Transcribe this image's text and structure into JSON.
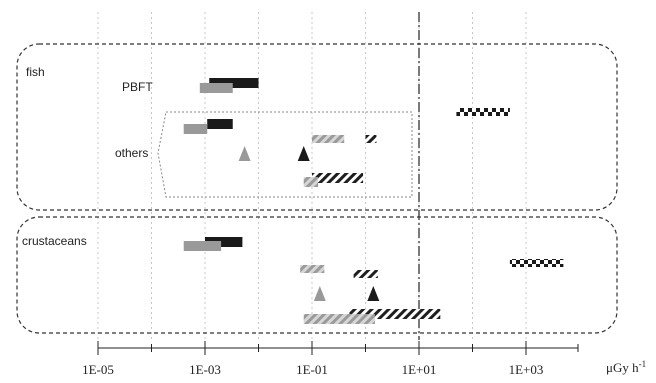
{
  "chart_data": {
    "type": "bar",
    "x_scale": "log10",
    "xlim": [
      1e-06,
      10000
    ],
    "x_ticks": [
      "1E-05",
      "1E-03",
      "1E-01",
      "1E+01",
      "1E+03"
    ],
    "x_tick_values": [
      1e-05,
      0.001,
      0.1,
      10,
      1000
    ],
    "x_minor_ticks": [
      0.0001,
      0.01,
      1,
      100
    ],
    "xlabel": "μGy h",
    "xlabel_exponent": "-1",
    "reference_line": 10,
    "grid": "vertical dotted",
    "colors": {
      "black": "#1a1a1a",
      "gray": "#999999",
      "hatched_light": "#a8a8a8",
      "hatched_dark": "#2a2a2a"
    },
    "groups": [
      {
        "name": "fish",
        "subgroups": [
          {
            "name": "PBFT",
            "marks": [
              {
                "kind": "bar",
                "style": "black",
                "x0": 0.0012,
                "x1": 0.01
              },
              {
                "kind": "bar",
                "style": "gray",
                "x0": 0.0008,
                "x1": 0.0033
              }
            ]
          },
          {
            "name": "others",
            "marks": [
              {
                "kind": "bar",
                "style": "black",
                "x0": 0.0011,
                "x1": 0.0033
              },
              {
                "kind": "bar",
                "style": "gray",
                "x0": 0.0004,
                "x1": 0.0011
              },
              {
                "kind": "bar",
                "style": "hatched_light",
                "x0": 0.1,
                "x1": 0.4
              },
              {
                "kind": "bar",
                "style": "hatched_dark",
                "x0": 1,
                "x1": 1.6
              },
              {
                "kind": "marker",
                "style": "gray",
                "x": 0.0055
              },
              {
                "kind": "marker",
                "style": "black",
                "x": 0.07
              },
              {
                "kind": "bar",
                "style": "hatched_dark",
                "x0": 0.1,
                "x1": 0.9
              },
              {
                "kind": "bar",
                "style": "hatched_light",
                "x0": 0.07,
                "x1": 0.13
              }
            ]
          },
          {
            "name": "",
            "marks": [
              {
                "kind": "bar",
                "style": "checker",
                "x0": 50,
                "x1": 500
              }
            ]
          }
        ]
      },
      {
        "name": "crustaceans",
        "subgroups": [
          {
            "name": "",
            "marks": [
              {
                "kind": "bar",
                "style": "black",
                "x0": 0.001,
                "x1": 0.005
              },
              {
                "kind": "bar",
                "style": "gray",
                "x0": 0.0004,
                "x1": 0.002
              },
              {
                "kind": "bar",
                "style": "checker",
                "x0": 500,
                "x1": 5000
              },
              {
                "kind": "bar",
                "style": "hatched_light",
                "x0": 0.06,
                "x1": 0.17
              },
              {
                "kind": "bar",
                "style": "hatched_dark",
                "x0": 0.6,
                "x1": 1.7
              },
              {
                "kind": "marker",
                "style": "gray",
                "x": 0.14
              },
              {
                "kind": "marker",
                "style": "black",
                "x": 1.4
              },
              {
                "kind": "bar",
                "style": "hatched_dark",
                "x0": 0.5,
                "x1": 25
              },
              {
                "kind": "bar",
                "style": "hatched_light",
                "x0": 0.07,
                "x1": 1.5
              }
            ]
          }
        ]
      }
    ]
  }
}
